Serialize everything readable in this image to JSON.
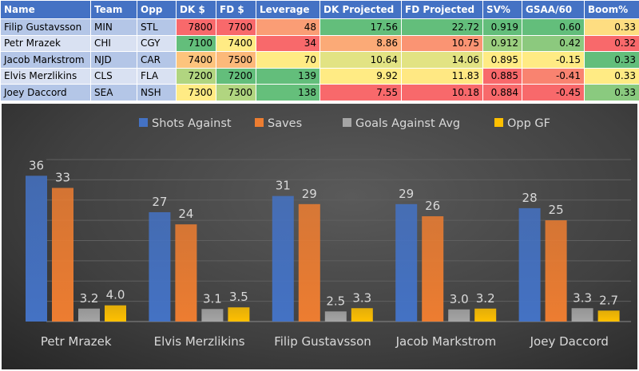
{
  "table": {
    "headers": [
      "Name",
      "Team",
      "Opp",
      "DK $",
      "FD $",
      "Leverage",
      "DK Projected",
      "FD Projected",
      "SV%",
      "GSAA/60",
      "Boom%"
    ],
    "rows": [
      [
        "Filip Gustavsson",
        "MIN",
        "STL",
        "7800",
        "7700",
        "48",
        "17.56",
        "22.72",
        "0.919",
        "0.60",
        "0.33"
      ],
      [
        "Petr Mrazek",
        "CHI",
        "CGY",
        "7100",
        "7400",
        "34",
        "8.86",
        "10.75",
        "0.912",
        "0.42",
        "0.32"
      ],
      [
        "Jacob Markstrom",
        "NJD",
        "CAR",
        "7400",
        "7500",
        "70",
        "10.64",
        "14.06",
        "0.895",
        "-0.15",
        "0.33"
      ],
      [
        "Elvis Merzlikins",
        "CLS",
        "FLA",
        "7200",
        "7200",
        "139",
        "9.92",
        "11.83",
        "0.885",
        "-0.41",
        "0.33"
      ],
      [
        "Joey Daccord",
        "SEA",
        "NSH",
        "7300",
        "7300",
        "138",
        "7.55",
        "10.18",
        "0.884",
        "-0.45",
        "0.33"
      ]
    ],
    "cell_colors": [
      [
        "#F8696B",
        "#F8696B",
        "#FA9D75",
        "#63BE7B",
        "#63BE7B",
        "#63BE7B",
        "#63BE7B",
        "#FEDD81"
      ],
      [
        "#63BE7B",
        "#FFEB84",
        "#F8696B",
        "#FBAA77",
        "#FA9473",
        "#9BCF7F",
        "#8CC97E",
        "#F8696B"
      ],
      [
        "#FDC47D",
        "#FCB97A",
        "#FFEB84",
        "#E2E383",
        "#E2E383",
        "#FFEB84",
        "#FFEB84",
        "#63BE7B"
      ],
      [
        "#B1D580",
        "#63BE7B",
        "#63BE7B",
        "#FFEB84",
        "#FFE883",
        "#F8696B",
        "#F98370",
        "#FFEB84"
      ],
      [
        "#FFEB84",
        "#B1D580",
        "#65BF7B",
        "#F8696B",
        "#F8696B",
        "#F8696B",
        "#F8696B",
        "#8ACA7F"
      ]
    ]
  },
  "chart_data": {
    "type": "bar",
    "categories": [
      "Petr Mrazek",
      "Elvis Merzlikins",
      "Filip Gustavsson",
      "Jacob Markstrom",
      "Joey Daccord"
    ],
    "series": [
      {
        "name": "Shots Against",
        "values": [
          36,
          27,
          31,
          29,
          28
        ],
        "labels": [
          "36",
          "27",
          "31",
          "29",
          "28"
        ],
        "color": "#4472C4"
      },
      {
        "name": "Saves",
        "values": [
          33,
          24,
          29,
          26,
          25
        ],
        "labels": [
          "33",
          "24",
          "29",
          "26",
          "25"
        ],
        "color": "#ED7D31"
      },
      {
        "name": "Goals Against Avg",
        "values": [
          3.2,
          3.1,
          2.5,
          3.0,
          3.3
        ],
        "labels": [
          "3.2",
          "3.1",
          "2.5",
          "3.0",
          "3.3"
        ],
        "color": "#A5A5A5"
      },
      {
        "name": "Opp GF",
        "values": [
          4.0,
          3.5,
          3.3,
          3.2,
          2.7
        ],
        "labels": [
          "4.0",
          "3.5",
          "3.3",
          "3.2",
          "2.7"
        ],
        "color": "#FFC000"
      }
    ],
    "ylim": [
      0,
      40
    ],
    "grid": true,
    "legend": "top"
  }
}
